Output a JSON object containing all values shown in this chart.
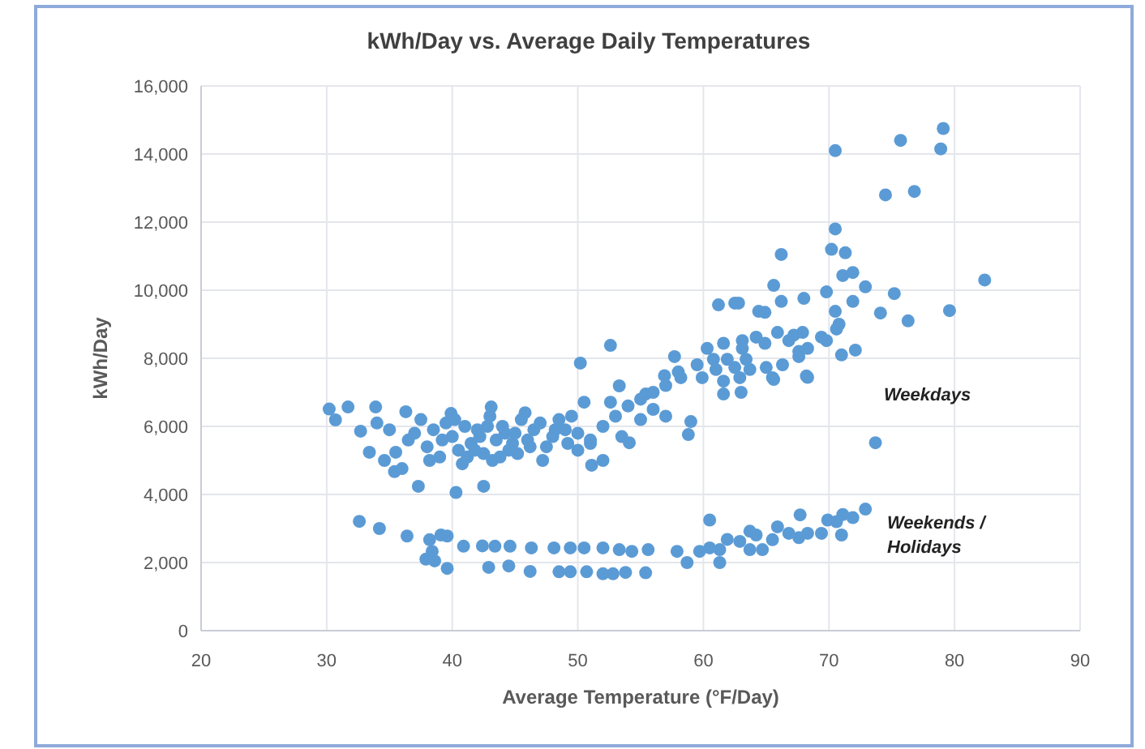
{
  "chart_data": {
    "type": "scatter",
    "title": "kWh/Day vs. Average Daily Temperatures",
    "xlabel": "Average Temperature (°F/Day)",
    "ylabel": "kWh/Day",
    "xlim": [
      20,
      90
    ],
    "xticks": [
      20,
      30,
      40,
      50,
      60,
      70,
      80,
      90
    ],
    "ylim": [
      0,
      16000
    ],
    "yticks": [
      {
        "value": 0,
        "label": "0"
      },
      {
        "value": 2000,
        "label": "2,000"
      },
      {
        "value": 4000,
        "label": "4,000"
      },
      {
        "value": 6000,
        "label": "6,000"
      },
      {
        "value": 8000,
        "label": "8,000"
      },
      {
        "value": 10000,
        "label": "10,000"
      },
      {
        "value": 12000,
        "label": "12,000"
      },
      {
        "value": 14000,
        "label": "14,000"
      },
      {
        "value": 16000,
        "label": "16,000"
      }
    ],
    "grid": true,
    "marker": "circle",
    "series": [
      {
        "name": "Weekdays",
        "color": "#5b9bd5",
        "x": [
          30.2,
          31.7,
          30.7,
          33.9,
          32.7,
          33.4,
          34.6,
          35.4,
          36,
          37.3,
          40.3,
          42.5,
          36.3,
          35.5,
          43.1,
          39.9,
          34,
          35,
          36.5,
          37,
          37.5,
          38,
          38.5,
          39,
          39.5,
          40,
          40.5,
          41,
          41.5,
          42,
          42.5,
          43,
          43.5,
          44,
          44.5,
          45,
          45.5,
          46,
          46.5,
          47,
          47.5,
          48,
          48.5,
          49,
          49.5,
          38.2,
          39.2,
          40.2,
          41.2,
          42.2,
          43.2,
          44.2,
          45.2,
          46.2,
          47.2,
          48.2,
          49.2,
          40.8,
          41.8,
          42.8,
          43.8,
          44.8,
          45.8,
          50,
          51,
          51.1,
          53.3,
          50.5,
          52.6,
          55.4,
          54.1,
          52,
          53,
          54,
          55,
          56,
          57,
          53.5,
          51,
          50,
          52,
          55,
          56,
          57,
          58,
          52.6,
          50.2,
          73.7,
          58.8,
          59,
          68.3,
          65.6,
          61.6,
          63,
          57.7,
          59.5,
          61,
          62.5,
          63.7,
          65,
          66.3,
          67.6,
          56.9,
          58.2,
          59.9,
          61.6,
          62.9,
          65.5,
          60.3,
          60.8,
          61.9,
          61.6,
          63.1,
          63.1,
          63.4,
          64.2,
          64.9,
          64.4,
          64.9,
          65.9,
          66.8,
          67.6,
          67.2,
          67.9,
          68.3,
          69.4,
          69.8,
          70.5,
          70.8,
          70.6,
          71,
          72.1,
          68.2,
          61.2,
          62.5,
          62.8,
          66.2,
          68,
          69.8,
          71.9,
          74.1,
          76.3,
          65.6,
          72.9,
          75.2,
          71.1,
          71.9,
          66.2,
          70.2,
          71.3,
          70.5,
          79.6,
          82.4,
          74.5,
          76.8,
          78.9,
          79.1,
          75.7,
          70.5
        ],
        "values": [
          6510,
          6570,
          6190,
          6570,
          5860,
          5240,
          5000,
          4670,
          4760,
          4240,
          4060,
          4240,
          6430,
          5240,
          6570,
          6380,
          6100,
          5900,
          5600,
          5800,
          6200,
          5400,
          5900,
          5100,
          6100,
          5700,
          5300,
          6000,
          5500,
          5900,
          5200,
          6300,
          5600,
          6000,
          5300,
          5800,
          6200,
          5600,
          5900,
          6100,
          5400,
          5700,
          6200,
          5900,
          6300,
          5000,
          5600,
          6200,
          5100,
          5700,
          5000,
          5800,
          5200,
          5400,
          5000,
          5900,
          5500,
          4900,
          5300,
          6000,
          5100,
          5500,
          6400,
          5800,
          5600,
          4860,
          7190,
          6710,
          6710,
          6950,
          5520,
          6000,
          6300,
          6600,
          6800,
          7000,
          7200,
          5700,
          5500,
          5300,
          5000,
          6200,
          6500,
          6300,
          7600,
          8380,
          7860,
          5520,
          5760,
          6140,
          7440,
          7380,
          6950,
          7000,
          8050,
          7810,
          7670,
          7730,
          7670,
          7730,
          7810,
          8050,
          7490,
          7430,
          7430,
          7330,
          7430,
          7430,
          8290,
          7970,
          7970,
          8440,
          8520,
          8290,
          7970,
          8620,
          8440,
          9380,
          9350,
          8760,
          8520,
          8200,
          8680,
          8760,
          8290,
          8620,
          8520,
          9380,
          9000,
          8860,
          8100,
          8240,
          7480,
          9570,
          9620,
          9620,
          9670,
          9760,
          9950,
          9670,
          9330,
          9100,
          10140,
          10100,
          9900,
          10430,
          10520,
          11050,
          11200,
          11100,
          11800,
          9400,
          10300,
          12800,
          12900,
          14150,
          14750,
          14400,
          14100
        ]
      },
      {
        "name": "Weekends / Holidays",
        "color": "#5b9bd5",
        "x": [
          32.6,
          34.2,
          36.4,
          38.2,
          39.1,
          39.6,
          38.4,
          37.9,
          38.6,
          40.9,
          42.4,
          43.4,
          44.6,
          46.3,
          48.1,
          49.4,
          50.5,
          52,
          53.3,
          54.3,
          55.6,
          39.6,
          42.9,
          44.5,
          46.2,
          48.5,
          49.4,
          50.7,
          52,
          52.8,
          53.8,
          55.4,
          57.9,
          58.7,
          59.7,
          60.5,
          61.3,
          61.3,
          60.5,
          61.9,
          62.9,
          63.7,
          64.2,
          63.7,
          64.7,
          65.5,
          65.9,
          66.8,
          67.7,
          67.6,
          68.3,
          69.4,
          69.9,
          70.6,
          71.1,
          71.9,
          71,
          72.9
        ],
        "values": [
          3210,
          3000,
          2780,
          2670,
          2810,
          2780,
          2330,
          2100,
          2050,
          2480,
          2490,
          2480,
          2480,
          2430,
          2430,
          2430,
          2430,
          2430,
          2380,
          2330,
          2380,
          1830,
          1860,
          1900,
          1740,
          1730,
          1730,
          1730,
          1670,
          1670,
          1710,
          1700,
          2330,
          2000,
          2330,
          2430,
          2380,
          2000,
          3250,
          2680,
          2620,
          2920,
          2810,
          2380,
          2380,
          2670,
          3050,
          2860,
          3400,
          2730,
          2860,
          2860,
          3250,
          3200,
          3410,
          3320,
          2810,
          3570
        ]
      }
    ]
  }
}
